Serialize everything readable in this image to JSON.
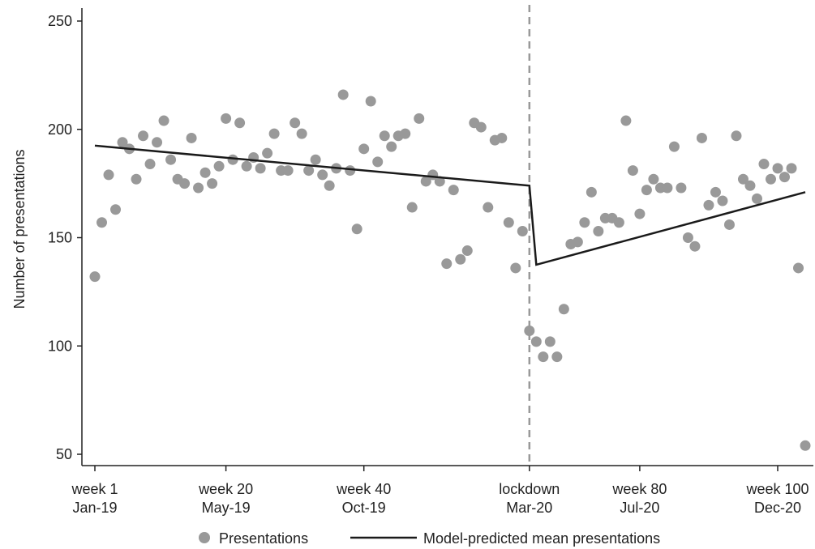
{
  "chart_data": {
    "type": "scatter",
    "ylabel": "Number of presentations",
    "ylim": [
      45,
      255
    ],
    "xlim": [
      -1,
      104
    ],
    "y_ticks": [
      50,
      100,
      150,
      200,
      250
    ],
    "x_ticks": [
      {
        "week": 1,
        "line1": "week 1",
        "line2": "Jan-19"
      },
      {
        "week": 20,
        "line1": "week 20",
        "line2": "May-19"
      },
      {
        "week": 40,
        "line1": "week 40",
        "line2": "Oct-19"
      },
      {
        "week": 64,
        "line1": "lockdown",
        "line2": "Mar-20"
      },
      {
        "week": 80,
        "line1": "week 80",
        "line2": "Jul-20"
      },
      {
        "week": 100,
        "line1": "week 100",
        "line2": "Dec-20"
      }
    ],
    "lockdown_week": 64,
    "grid": false,
    "legend_position": "bottom",
    "colors": {
      "points": "#999999",
      "model_line": "#1a1a1a",
      "lockdown_line": "#999999",
      "axis": "#222222"
    },
    "series": [
      {
        "name": "Presentations",
        "kind": "points",
        "x": [
          1,
          2,
          3,
          4,
          5,
          6,
          7,
          8,
          9,
          10,
          11,
          12,
          13,
          14,
          15,
          16,
          17,
          18,
          19,
          20,
          21,
          22,
          23,
          24,
          25,
          26,
          27,
          28,
          29,
          30,
          31,
          32,
          33,
          34,
          35,
          36,
          37,
          38,
          39,
          40,
          41,
          42,
          43,
          44,
          45,
          46,
          47,
          48,
          49,
          50,
          51,
          52,
          53,
          54,
          55,
          56,
          57,
          58,
          59,
          60,
          61,
          62,
          63,
          64,
          65,
          66,
          67,
          68,
          69,
          70,
          71,
          72,
          73,
          74,
          75,
          76,
          77,
          78,
          79,
          80,
          81,
          82,
          83,
          84,
          85,
          86,
          87,
          88,
          89,
          90,
          91,
          92,
          93,
          94,
          95,
          96,
          97,
          98,
          99,
          100,
          101,
          102,
          103,
          104
        ],
        "y": [
          132,
          157,
          179,
          163,
          194,
          191,
          177,
          197,
          184,
          194,
          204,
          186,
          177,
          175,
          196,
          173,
          180,
          175,
          183,
          205,
          186,
          203,
          183,
          187,
          182,
          189,
          198,
          181,
          181,
          203,
          198,
          181,
          186,
          179,
          174,
          182,
          216,
          181,
          154,
          191,
          213,
          185,
          197,
          192,
          197,
          198,
          164,
          205,
          176,
          179,
          176,
          138,
          172,
          140,
          144,
          203,
          201,
          164,
          195,
          196,
          157,
          136,
          153,
          107,
          102,
          95,
          102,
          95,
          117,
          147,
          148,
          157,
          171,
          153,
          159,
          159,
          157,
          204,
          181,
          161,
          172,
          177,
          173,
          173,
          192,
          173,
          150,
          146,
          196,
          165,
          171,
          167,
          156,
          197,
          177,
          174,
          168,
          184,
          177,
          182,
          178,
          182,
          136,
          54
        ]
      },
      {
        "name": "Model-predicted mean presentations",
        "kind": "line",
        "segments": [
          {
            "x": [
              1,
              64
            ],
            "y": [
              192.5,
              174
            ]
          },
          {
            "x": [
              65,
              104
            ],
            "y": [
              137.5,
              171
            ]
          }
        ]
      }
    ]
  }
}
